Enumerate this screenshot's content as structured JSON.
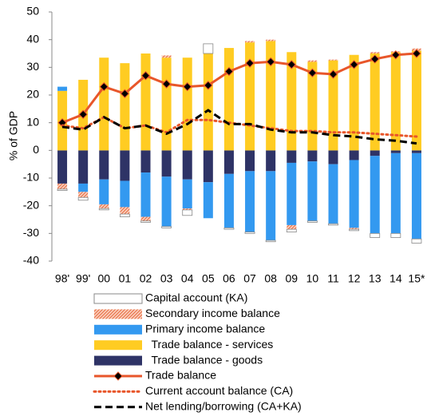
{
  "chart_data": {
    "type": "bar",
    "y_label": "% of GDP",
    "categories": [
      "98'",
      "99'",
      "00",
      "01",
      "02",
      "03",
      "04",
      "05",
      "06",
      "07",
      "08",
      "09",
      "10",
      "11",
      "12",
      "13",
      "14",
      "15*"
    ],
    "ylim": [
      -40,
      50
    ],
    "yticks": [
      -40,
      -30,
      -20,
      -10,
      0,
      10,
      20,
      30,
      40,
      50
    ],
    "series": [
      {
        "name": "Capital account (KA)",
        "type": "bar",
        "color": "#ffffff",
        "values": [
          -0.5,
          -1,
          -0.5,
          -1,
          -0.5,
          -0.5,
          -2,
          3.5,
          -0.5,
          -0.5,
          -0.5,
          -1,
          -0.5,
          -0.5,
          -0.5,
          -1.5,
          -1.5,
          -1.5
        ]
      },
      {
        "name": "Secondary income balance",
        "type": "bar",
        "color": "#e8734a",
        "hatch": true,
        "values": [
          -2,
          -2,
          -1.5,
          -2.5,
          -1.5,
          0.8,
          -0.5,
          0,
          0,
          0.5,
          0.5,
          -1.5,
          0.5,
          0.3,
          -0.5,
          0.5,
          0.3,
          0.8
        ]
      },
      {
        "name": "Primary income balance",
        "type": "bar",
        "color": "#3399f0",
        "values": [
          1.5,
          -3,
          -9,
          -9.5,
          -16,
          -18,
          -10.5,
          -13,
          -19.5,
          -22,
          -25,
          -22.5,
          -21.5,
          -21.5,
          -24.5,
          -28,
          -29,
          -31
        ]
      },
      {
        "name": "  Trade balance - services",
        "type": "bar",
        "color": "#ffcc22",
        "values": [
          21.5,
          25.5,
          33.5,
          31.5,
          35,
          33.5,
          33.5,
          35,
          37,
          39,
          39.5,
          35.5,
          32,
          32.5,
          34.5,
          35,
          35.5,
          36
        ]
      },
      {
        "name": "  Trade balance - goods",
        "type": "bar",
        "color": "#2e3366",
        "values": [
          -12,
          -12,
          -10.5,
          -11,
          -8,
          -9.5,
          -10.5,
          -11.5,
          -8.5,
          -7.5,
          -7.5,
          -4.5,
          -4,
          -5,
          -3.5,
          -2,
          -1,
          -1
        ]
      },
      {
        "name": "Trade balance",
        "type": "line",
        "color": "#e8562a",
        "style": "solid",
        "marker": "diamond",
        "values": [
          10,
          13,
          23,
          20.5,
          27,
          24,
          23,
          23.5,
          28.5,
          31.5,
          32,
          31,
          28,
          27.5,
          31,
          33,
          34.5,
          35
        ]
      },
      {
        "name": "Current account balance (CA)",
        "type": "line",
        "color": "#e8562a",
        "style": "dotted",
        "values": [
          9,
          8,
          12,
          8,
          9,
          6.5,
          11,
          11,
          10,
          9,
          8,
          7,
          7,
          6.5,
          6.5,
          6,
          5.5,
          5
        ]
      },
      {
        "name": "Net lending/borrowing (CA+KA)",
        "type": "line",
        "color": "#000000",
        "style": "dashed",
        "values": [
          8.5,
          7.5,
          12,
          8,
          9,
          6,
          9.5,
          14.5,
          9.5,
          9.5,
          7.5,
          6.5,
          6.5,
          5.5,
          5,
          4,
          3.5,
          2.5
        ]
      }
    ]
  }
}
